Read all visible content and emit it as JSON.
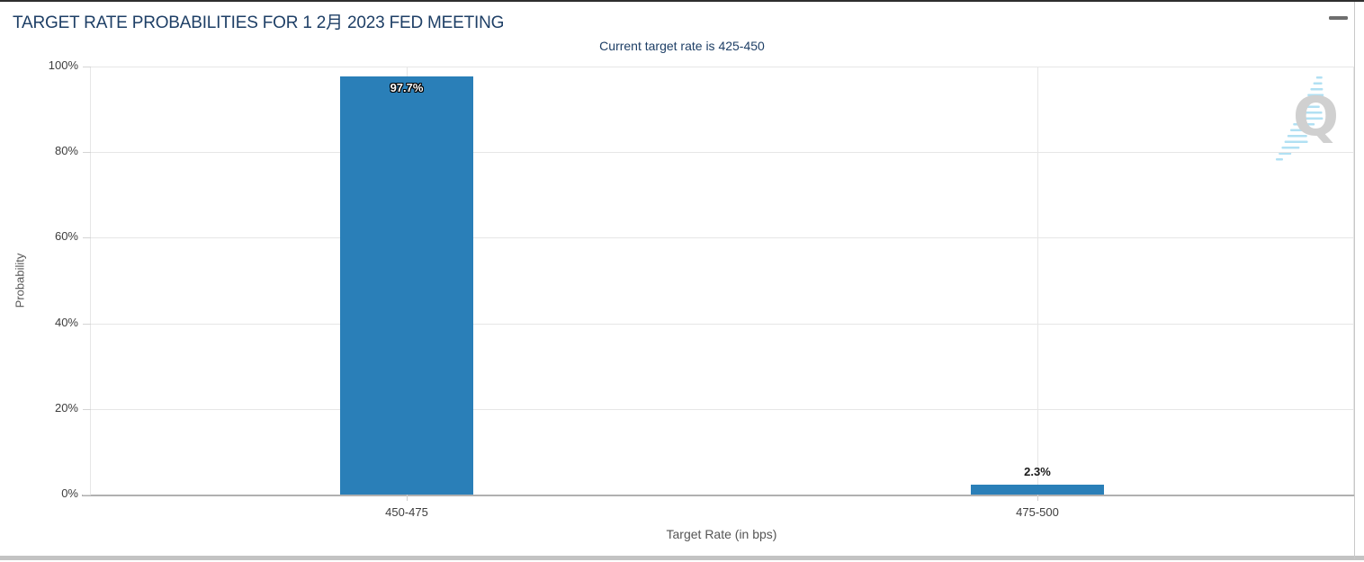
{
  "header": {
    "title": "TARGET RATE PROBABILITIES FOR 1 2月 2023 FED MEETING",
    "menu_icon": "hamburger-icon"
  },
  "chart_data": {
    "type": "bar",
    "title": "TARGET RATE PROBABILITIES FOR 1 2月 2023 FED MEETING",
    "subtitle": "Current target rate is 425-450",
    "categories": [
      "450-475",
      "475-500"
    ],
    "values": [
      97.7,
      2.3
    ],
    "value_labels": [
      "97.7%",
      "2.3%"
    ],
    "xlabel": "Target Rate (in bps)",
    "ylabel": "Probability",
    "ylim": [
      0,
      100
    ],
    "yticks": [
      "0%",
      "20%",
      "40%",
      "60%",
      "80%",
      "100%"
    ],
    "grid": true,
    "legend_position": "none",
    "bar_color": "#2a7fb8"
  },
  "watermark": {
    "letter": "Q"
  },
  "colors": {
    "navy": "#1e3f66",
    "bar_blue": "#2a7fb8",
    "grid": "#e6e6e6",
    "axis_line": "#b0b0b0",
    "tick_text": "#3d3d3d",
    "axis_title_text": "#555555",
    "menu_gray": "#6e6e6e",
    "watermark_gray": "#cccccc",
    "watermark_blue": "#a9ddf2"
  }
}
